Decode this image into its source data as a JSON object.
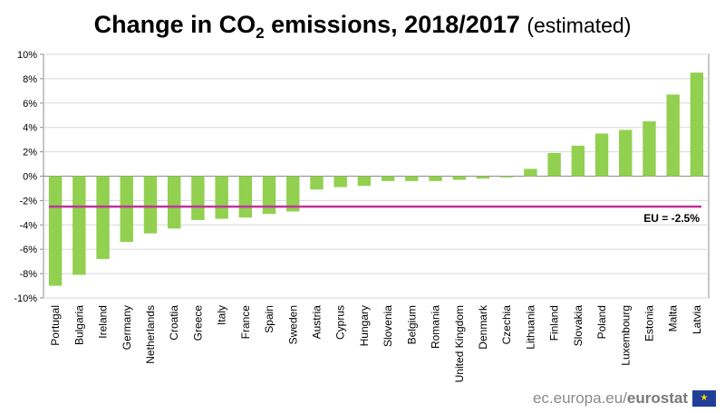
{
  "title": {
    "main_before": "Change in CO",
    "subscript": "2",
    "main_after": " emissions, 2018/2017",
    "note": "(estimated)"
  },
  "colors": {
    "bar": "#92d050",
    "eu_line": "#c0349b",
    "axis": "#8c8c8c",
    "grid": "#d9d9d9",
    "footer_flag": "#1f3f99",
    "footer_stars": "#ffd700"
  },
  "chart_data": {
    "type": "bar",
    "categories": [
      "Portugal",
      "Bulgaria",
      "Ireland",
      "Germany",
      "Netherlands",
      "Croatia",
      "Greece",
      "Italy",
      "France",
      "Spain",
      "Sweden",
      "Austria",
      "Cyprus",
      "Hungary",
      "Slovenia",
      "Belgium",
      "Romania",
      "United Kingdom",
      "Denmark",
      "Czechia",
      "Lithuania",
      "Finland",
      "Slovakia",
      "Poland",
      "Luxembourg",
      "Estonia",
      "Malta",
      "Latvia"
    ],
    "values": [
      -9.0,
      -8.1,
      -6.8,
      -5.4,
      -4.7,
      -4.3,
      -3.6,
      -3.5,
      -3.4,
      -3.1,
      -2.9,
      -1.1,
      -0.9,
      -0.8,
      -0.4,
      -0.4,
      -0.4,
      -0.3,
      -0.2,
      -0.1,
      0.6,
      1.9,
      2.5,
      3.5,
      3.8,
      4.5,
      6.7,
      8.5
    ],
    "ylim": [
      -10,
      10
    ],
    "yticks": [
      10,
      8,
      6,
      4,
      2,
      0,
      -2,
      -4,
      -6,
      -8,
      -10
    ],
    "ytick_labels": [
      "10%",
      "8%",
      "6%",
      "4%",
      "2%",
      "0%",
      "-2%",
      "-4%",
      "-6%",
      "-8%",
      "-10%"
    ],
    "grid": true,
    "reference_line": {
      "label": "EU = -2.5%",
      "value": -2.5
    },
    "xlabel": "",
    "ylabel": ""
  },
  "footer": {
    "source_prefix": "ec.europa.eu/",
    "source_brand": "eurostat",
    "flag_stars": "★"
  }
}
